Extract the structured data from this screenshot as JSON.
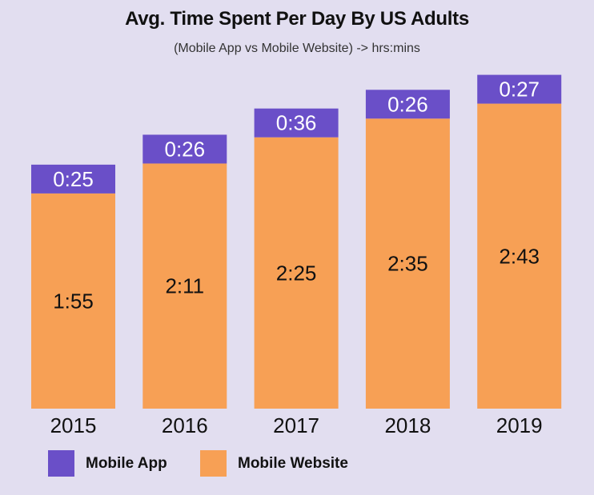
{
  "chart_data": {
    "type": "bar",
    "stacked": true,
    "title": "Avg. Time Spent Per Day By US Adults",
    "subtitle": "(Mobile App vs Mobile Website) -> hrs:mins",
    "categories": [
      "2015",
      "2016",
      "2017",
      "2018",
      "2019"
    ],
    "series": [
      {
        "name": "Mobile Website",
        "color": "#f7a055",
        "values_minutes": [
          115,
          131,
          145,
          155,
          163
        ],
        "labels": [
          "1:55",
          "2:11",
          "2:25",
          "2:35",
          "2:43"
        ]
      },
      {
        "name": "Mobile App",
        "color": "#6a4fc8",
        "values_minutes": [
          25,
          26,
          36,
          26,
          27
        ],
        "labels": [
          "0:25",
          "0:26",
          "0:36",
          "0:26",
          "0:27"
        ]
      }
    ],
    "legend": {
      "placement": "bottom-left",
      "items": [
        "Mobile App",
        "Mobile Website"
      ]
    },
    "grid": false,
    "y_axis_visible": false
  }
}
